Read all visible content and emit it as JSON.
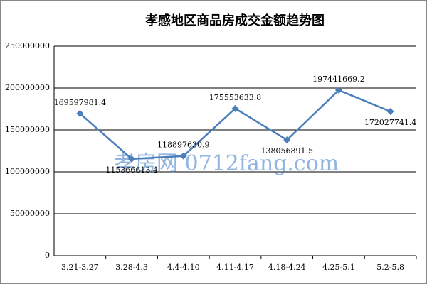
{
  "chart_data": {
    "type": "line",
    "title": "孝感地区商品房成交金额趋势图",
    "categories": [
      "3.21-3.27",
      "3.28-4.3",
      "4.4-4.10",
      "4.11-4.17",
      "4.18-4.24",
      "4.25-5.1",
      "5.2-5.8"
    ],
    "series": [
      {
        "name": "成交金额",
        "color": "#4a7ebb",
        "values": [
          169597981.4,
          115366613.4,
          118897630.9,
          175553633.8,
          138056891.5,
          197441669.2,
          172027741.4
        ]
      }
    ],
    "ylim": [
      0,
      250000000
    ],
    "yticks": [
      0,
      50000000,
      100000000,
      150000000,
      200000000,
      250000000
    ],
    "grid": true,
    "watermark": "孝房网 0712fang.com"
  }
}
